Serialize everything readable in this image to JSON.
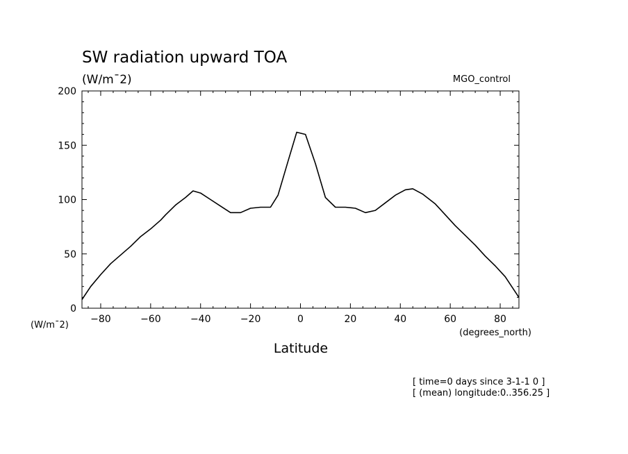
{
  "chart_data": {
    "type": "line",
    "title": "SW radiation upward TOA",
    "units": "(W/m¯2)",
    "experiment": "MGO_control",
    "xlabel": "Latitude",
    "x_units": "(degrees_north)",
    "y_units": "(W/m¯2)",
    "xlim": [
      -87.5,
      87.5
    ],
    "ylim": [
      0,
      200
    ],
    "x_ticks": [
      -80,
      -60,
      -40,
      -20,
      0,
      20,
      40,
      60,
      80
    ],
    "y_ticks": [
      0,
      50,
      100,
      150,
      200
    ],
    "x_tick_labels": [
      "−80",
      "−60",
      "−40",
      "−20",
      "0",
      "20",
      "40",
      "60",
      "80"
    ],
    "y_tick_labels": [
      "0",
      "50",
      "100",
      "150",
      "200"
    ],
    "grid": false,
    "x": [
      -87.5,
      -84,
      -80,
      -76,
      -72,
      -68,
      -64,
      -60,
      -56,
      -54,
      -50,
      -46,
      -43,
      -40,
      -36,
      -32,
      -28,
      -24,
      -20,
      -16,
      -12,
      -9,
      -5,
      -1.5,
      2,
      6,
      10,
      14,
      18,
      22,
      26,
      30,
      34,
      38,
      42,
      45,
      49,
      54,
      58,
      62,
      66,
      70,
      74,
      78,
      82,
      87.5
    ],
    "series": [
      {
        "values": [
          8,
          20,
          31,
          41,
          49,
          57,
          66,
          73,
          81,
          86,
          95,
          102,
          108,
          106,
          100,
          94,
          88,
          88,
          92,
          93,
          93,
          104,
          135,
          162,
          160,
          133,
          102,
          93,
          93,
          92,
          88,
          90,
          97,
          104,
          109,
          110,
          105,
          96,
          86,
          76,
          67,
          58,
          48,
          39,
          29,
          10
        ]
      }
    ],
    "annotations": [
      "[ time=0 days since 3-1-1 0 ]",
      "[ (mean) longitude:0..356.25 ]"
    ]
  }
}
